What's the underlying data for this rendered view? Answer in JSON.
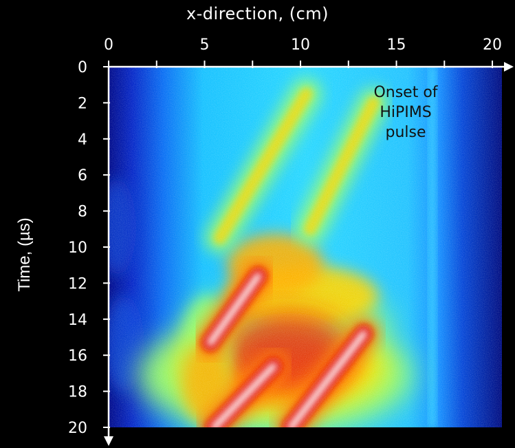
{
  "chart_data": {
    "type": "heatmap",
    "xlabel": "x-direction, (cm)",
    "ylabel": "Time, (µs)",
    "x_ticks": [
      "0",
      "5",
      "10",
      "15",
      "20"
    ],
    "y_ticks": [
      "0",
      "2",
      "4",
      "6",
      "8",
      "10",
      "12",
      "14",
      "16",
      "18",
      "20"
    ],
    "xlim": [
      0,
      20.5
    ],
    "ylim": [
      0,
      20
    ],
    "y_axis_inverted": true,
    "colormap": [
      "#00008f",
      "#0a3cff",
      "#1aa0ff",
      "#26e6ff",
      "#9bff66",
      "#ffe100",
      "#ff7a00",
      "#e01010",
      "#ffffff"
    ],
    "annotation": [
      "Onset of",
      "HiPIMS",
      "pulse"
    ],
    "features": [
      {
        "shape": "bright streak",
        "x_from": 7.8,
        "t_from": 11.6,
        "x_to": 5.3,
        "t_to": 15.3,
        "level": "white-red"
      },
      {
        "shape": "bright streak",
        "x_from": 8.6,
        "t_from": 16.6,
        "x_to": 5.5,
        "t_to": 20,
        "level": "white-red"
      },
      {
        "shape": "bright streak",
        "x_from": 13.3,
        "t_from": 14.8,
        "x_to": 9.5,
        "t_to": 20,
        "level": "white-red"
      },
      {
        "shape": "diagonal band",
        "x_from": 10.3,
        "t_from": 1.5,
        "x_to": 5.8,
        "t_to": 9.5,
        "level": "yellow-green"
      },
      {
        "shape": "diagonal band",
        "x_from": 13.8,
        "t_from": 2.0,
        "x_to": 10.5,
        "t_to": 9.0,
        "level": "yellow-green"
      }
    ]
  }
}
